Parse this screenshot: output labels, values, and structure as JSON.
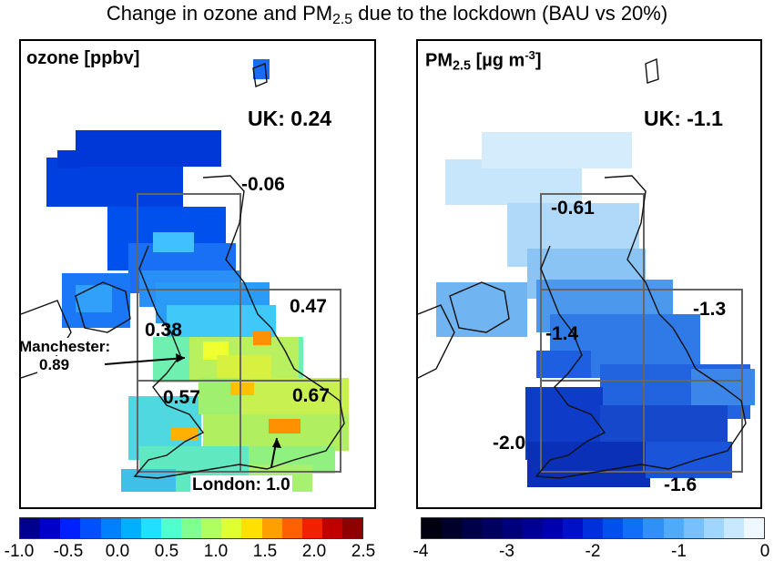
{
  "title": {
    "pre": "Change in ozone and PM",
    "sub": "2.5",
    "post": " due to the lockdown (BAU vs 20%)"
  },
  "left_panel": {
    "label": "ozone [ppbv]",
    "uk_value": "UK: 0.24",
    "regions": {
      "scotland": "-0.06",
      "north_west": "0.38",
      "north_east": "0.47",
      "south_west": "0.57",
      "south_east": "0.67"
    },
    "manchester": {
      "line1": "Manchester:",
      "line2": "0.89"
    },
    "london": "London: 1.0"
  },
  "right_panel": {
    "label_pre": "PM",
    "label_sub": "2.5",
    "label_post": " [µg m",
    "label_sup": "-3",
    "label_end": "]",
    "uk_value": "UK: -1.1",
    "regions": {
      "scotland": "-0.61",
      "north_west": "-1.4",
      "north_east": "-1.3",
      "south_west": "-2.0",
      "south_east": "-1.6"
    }
  },
  "colorbar_ozone": {
    "ticks": [
      "-1.0",
      "-0.5",
      "0.0",
      "0.5",
      "1.0",
      "1.5",
      "2.0",
      "2.5"
    ],
    "min": -1.0,
    "max": 2.5,
    "colors": [
      "#00008f",
      "#0000c8",
      "#0020ff",
      "#0050ff",
      "#0080ff",
      "#00b0ff",
      "#20e0ff",
      "#50ffd0",
      "#80ff90",
      "#b0ff60",
      "#e0ff30",
      "#ffe000",
      "#ffa000",
      "#ff6000",
      "#f02000",
      "#c00000",
      "#8f0000"
    ]
  },
  "colorbar_pm25": {
    "ticks": [
      "-4",
      "-3",
      "-2",
      "-1",
      "0"
    ],
    "min": -4,
    "max": 0,
    "colors": [
      "#000010",
      "#00002a",
      "#000048",
      "#00005f",
      "#00007a",
      "#000095",
      "#0000b0",
      "#0010c8",
      "#0030dc",
      "#0050ee",
      "#1070f5",
      "#3090f8",
      "#50aafa",
      "#78c0fc",
      "#a0d6fd",
      "#c8e8fe",
      "#f0f8ff"
    ]
  },
  "chart_data": {
    "type": "heatmap",
    "title": "Change in ozone and PM2.5 due to the lockdown (BAU vs 20%)",
    "panels": [
      {
        "variable": "ozone",
        "units": "ppbv",
        "uk_mean": 0.24,
        "regions": {
          "Scotland": -0.06,
          "North West": 0.38,
          "North East": 0.47,
          "South West": 0.57,
          "South East": 0.67
        },
        "cities": {
          "Manchester": 0.89,
          "London": 1.0
        },
        "colorbar_range": [
          -1.0,
          2.5
        ]
      },
      {
        "variable": "PM2.5",
        "units": "µg m-3",
        "uk_mean": -1.1,
        "regions": {
          "Scotland": -0.61,
          "North West": -1.4,
          "North East": -1.3,
          "South West": -2.0,
          "South East": -1.6
        },
        "colorbar_range": [
          -4,
          0
        ]
      }
    ]
  }
}
